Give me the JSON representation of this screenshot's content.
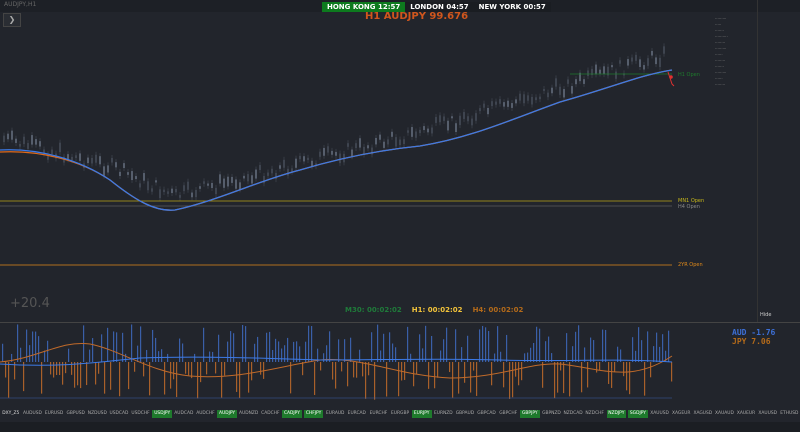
{
  "window": {
    "title": "AUDJPY,H1"
  },
  "sessions": [
    {
      "label": "HONG KONG",
      "time": "12:57"
    },
    {
      "label": "LONDON",
      "time": "04:57"
    },
    {
      "label": "NEW YORK",
      "time": "00:57"
    }
  ],
  "main_title": "H1 AUDJPY 99.676",
  "lines": {
    "h1_open": "H1 Open",
    "mn1_open": "MN1 Open",
    "h4_open": "H4 Open",
    "yr_open": "2YR Open"
  },
  "strength": "+20.4",
  "timers": {
    "m30": "M30: 00:02:02",
    "h1": "H1: 00:02:02",
    "h4": "H4: 00:02:02"
  },
  "hide_label": "Hide",
  "pairs": {
    "aud": "AUD -1.76",
    "jpy": "JPY  7.06"
  },
  "symbols": [
    "DXY_Z5",
    "AUDUSD",
    "EURUSD",
    "GBPUSD",
    "NZDUSD",
    "USDCAD",
    "USDCHF",
    "USDJPY",
    "AUDCAD",
    "AUDCHF",
    "AUDJPY",
    "AUDNZD",
    "CADCHF",
    "CADJPY",
    "CHFJPY",
    "EURAUD",
    "EURCAD",
    "EURCHF",
    "EURGBP",
    "EURJPY",
    "EURNZD",
    "GBPAUD",
    "GBPCAD",
    "GBPCHF",
    "GBPJPY",
    "GBPNZD",
    "NZDCAD",
    "NZDCHF",
    "NZDJPY",
    "SGDJPY",
    "XAUUSD",
    "XAGEUR",
    "XAGUSD",
    "XAUAUD",
    "XAUEUR",
    "XAUUSD",
    "ETHUSD"
  ],
  "active_symbols": [
    7,
    10,
    13,
    14,
    19,
    24,
    28,
    29
  ],
  "colors": {
    "bull": "#1e7a2c",
    "title": "#d0561d",
    "ma": "#3c6fd6",
    "orange": "#e08a1a",
    "yellow": "#c8b81a"
  }
}
